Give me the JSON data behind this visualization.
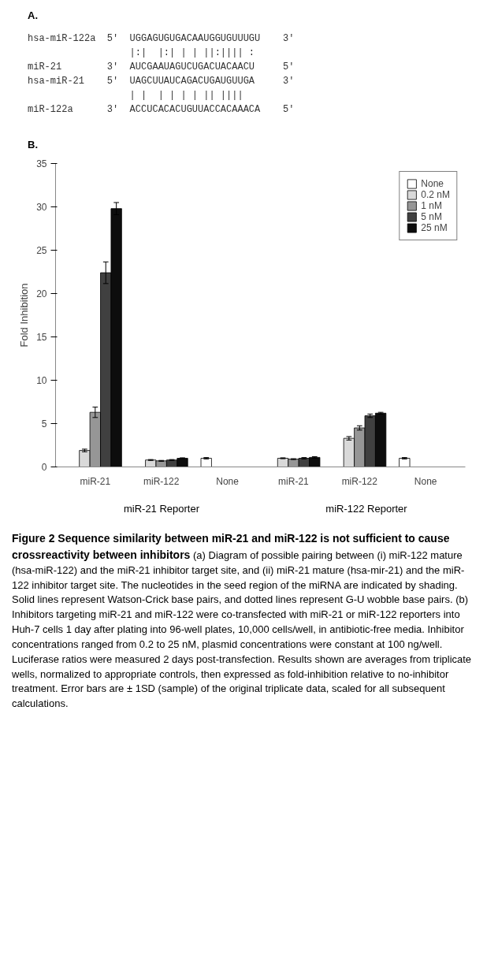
{
  "chart_data": {
    "type": "bar",
    "title": "Figure 2 Sequence similarity between miR-21 and miR-122 is not sufficient to cause crossreactivity between inhibitors",
    "ylabel": "Fold Inhibition",
    "categories": [
      "miR-21",
      "miR-122",
      "None",
      "miR-21",
      "miR-122",
      "None"
    ],
    "series": [
      {
        "name": "None",
        "color": "#ffffff",
        "values": [
          null,
          null,
          1.0,
          null,
          null,
          1.0
        ],
        "errors": [
          null,
          null,
          0.08,
          null,
          null,
          0.08
        ]
      },
      {
        "name": "0.2 nM",
        "color": "#d9d9d9",
        "values": [
          1.9,
          0.8,
          null,
          1.0,
          3.3,
          null
        ],
        "errors": [
          0.15,
          0.05,
          null,
          0.05,
          0.2,
          null
        ]
      },
      {
        "name": "1 nM",
        "color": "#969696",
        "values": [
          6.3,
          0.7,
          null,
          0.9,
          4.5,
          null
        ],
        "errors": [
          0.6,
          0.05,
          null,
          0.05,
          0.25,
          null
        ]
      },
      {
        "name": "5 nM",
        "color": "#404040",
        "values": [
          22.4,
          0.8,
          null,
          1.0,
          5.9,
          null
        ],
        "errors": [
          1.25,
          0.05,
          null,
          0.08,
          0.2,
          null
        ]
      },
      {
        "name": "25 nM",
        "color": "#0d0d0d",
        "values": [
          29.8,
          1.0,
          null,
          1.1,
          6.2,
          null
        ],
        "errors": [
          0.7,
          0.05,
          null,
          0.08,
          0.1,
          null
        ]
      }
    ],
    "ylim": [
      0,
      35
    ],
    "yticks": [
      0,
      5,
      10,
      15,
      20,
      25,
      30,
      35
    ],
    "grid": false,
    "legend": "top right",
    "annotations": [
      "A.",
      "hsa-miR-122a  5′  UGGAGUGUGACAAUGGUGUUUGU    3′",
      "                  |:|  |:| | | ||:|||| :",
      "miR-21        3′  AUCGAAUAGUCUGACUACAACU     5′",
      "hsa-miR-21    5′  UAGCUUAUCAGACUGAUGUUGA     3′",
      "                  | |  | | | | || ||||",
      "miR-122a      3′  ACCUCACACUGUUACCACAAACA    5′",
      "B.",
      "miR-21 Reporter",
      "miR-122 Reporter",
      "(a) Diagram of possible pairing between (i) miR-122 mature (hsa-miR-122) and the miR-21 inhibitor target site, and (ii) miR-21 mature (hsa-mir-21) and the miR-122 inhibitor target site. The nucleotides in the seed region of the miRNA are indicated by shading. Solid lines represent Watson-Crick base pairs, and dotted lines represent G-U wobble base pairs. (b) Inhibitors targeting miR-21 and miR-122 were co-transfected with miR-21 or miR-122 reporters into Huh-7 cells 1 day after plating into 96-well plates, 10,000 cells/well, in antibiotic-free media. Inhibitor concentrations ranged from 0.2 to 25 nM, plasmid concentrations were constant at 100 ng/well. Luciferase ratios were measured 2 days post-transfection. Results shown are averages from triplicate wells, normalized to appropriate controls, then expressed as fold-inhibition relative to no-inhibitor treatment. Error bars are ± 1SD (sample) of the original triplicate data, scaled for all subsequent calculations."
    ]
  }
}
